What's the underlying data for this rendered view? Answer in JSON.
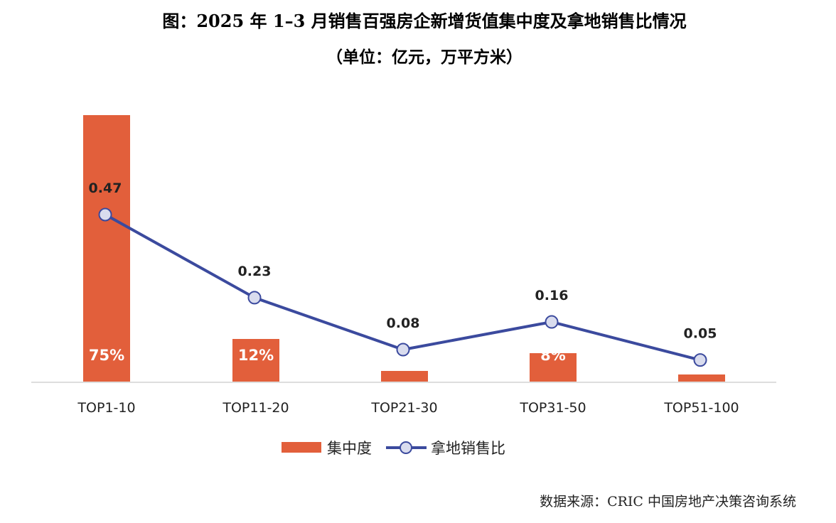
{
  "chart_data": {
    "type": "bar",
    "title": "图：2025 年 1–3 月销售百强房企新增货值集中度及拿地销售比情况",
    "subtitle": "（单位：亿元，万平方米）",
    "categories": [
      "TOP1-10",
      "TOP11-20",
      "TOP21-30",
      "TOP31-50",
      "TOP51-100"
    ],
    "series": [
      {
        "name": "集中度",
        "type": "bar",
        "values": [
          75,
          12,
          3,
          8,
          2
        ],
        "labels": [
          "75%",
          "12%",
          "",
          "8%",
          ""
        ],
        "color": "#E25F3B"
      },
      {
        "name": "拿地销售比",
        "type": "line",
        "values": [
          0.47,
          0.23,
          0.08,
          0.16,
          0.05
        ],
        "labels": [
          "0.47",
          "0.23",
          "0.08",
          "0.16",
          "0.05"
        ],
        "color": "#3B4A9E",
        "marker_fill": "#D9DCEE"
      }
    ],
    "bar_axis_range": [
      0,
      75
    ],
    "line_axis_range": [
      0,
      0.7
    ],
    "grid": false,
    "legend_position": "bottom"
  },
  "source": "数据来源：CRIC 中国房地产决策咨询系统"
}
